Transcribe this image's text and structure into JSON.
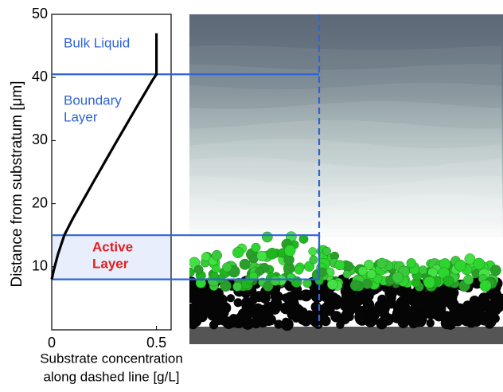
{
  "chart_data": {
    "type": "line",
    "ylabel": "Distance from substratum [μm]",
    "xlabel": [
      "Substrate concentration",
      "along dashed line [g/L]"
    ],
    "x": [
      0.5,
      0.5,
      0.48,
      0.4,
      0.3,
      0.2,
      0.1,
      0.06,
      0.03,
      0.01,
      0
    ],
    "series": [
      {
        "color": "#000000",
        "values": [
          47,
          40.5,
          39.5,
          35,
          29.3,
          23.5,
          17.6,
          15,
          12,
          9.5,
          8
        ]
      }
    ],
    "xlim": [
      0,
      0.57
    ],
    "ylim": [
      0,
      50
    ],
    "xticks": [
      0,
      0.5
    ],
    "yticks": [
      10,
      20,
      30,
      40,
      50
    ],
    "layer_boundaries": [
      40.5,
      15,
      8
    ],
    "boundary_color": "#2e63d9",
    "annotations": [
      {
        "text": [
          "Bulk Liquid"
        ],
        "color": "#2e63d9"
      },
      {
        "text": [
          "Boundary",
          "Layer"
        ],
        "color": "#2e63d9"
      },
      {
        "text": [
          "Active",
          "Layer"
        ],
        "color": "#e02020"
      }
    ]
  }
}
